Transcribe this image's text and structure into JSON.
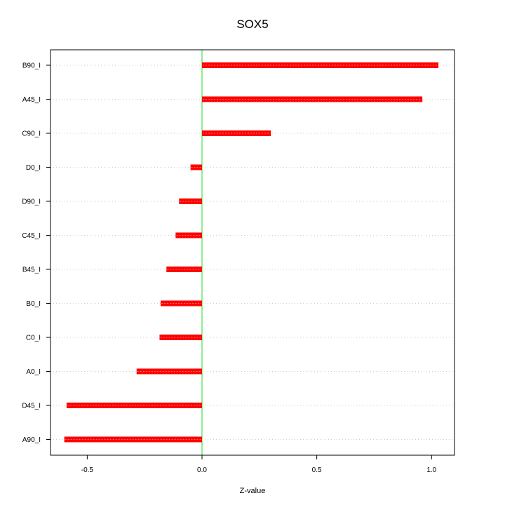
{
  "chart_data": {
    "type": "bar",
    "orientation": "horizontal",
    "title": "SOX5",
    "xlabel": "Z-value",
    "ylabel": "",
    "categories": [
      "B90_I",
      "A45_I",
      "C90_I",
      "D0_I",
      "D90_I",
      "C45_I",
      "B45_I",
      "B0_I",
      "C0_I",
      "A0_I",
      "D45_I",
      "A90_I"
    ],
    "values": [
      1.03,
      0.96,
      0.3,
      -0.05,
      -0.1,
      -0.115,
      -0.155,
      -0.18,
      -0.185,
      -0.285,
      -0.59,
      -0.6
    ],
    "xlim": [
      -0.66,
      1.1
    ],
    "xticks": [
      -0.5,
      0.0,
      0.5,
      1.0
    ],
    "xtick_labels": [
      "-0.5",
      "0.0",
      "0.5",
      "1.0"
    ],
    "grid": "horizontal dotted",
    "reference_line": 0,
    "colors": {
      "bar": "#ff0000",
      "bar_highlight": "#ff6a6a",
      "zero_line": "#90ee90",
      "grid": "#cccccc",
      "frame": "#000000"
    }
  }
}
